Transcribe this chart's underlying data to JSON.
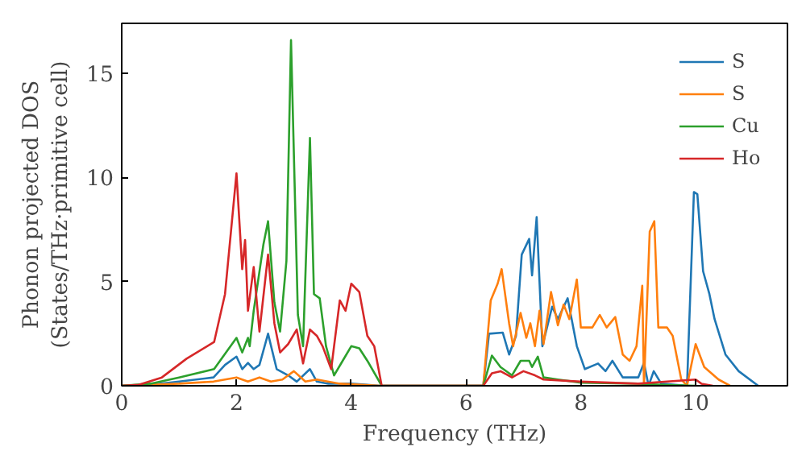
{
  "chart_data": {
    "type": "line",
    "xlabel": "Frequency (THz)",
    "ylabel": "Phonon projected DOS\n(States/THz·primitive cell)",
    "xlim": [
      0,
      11.6
    ],
    "ylim": [
      0,
      17.4
    ],
    "xticks": [
      0,
      2,
      4,
      6,
      8,
      10
    ],
    "yticks": [
      0,
      5,
      10,
      15
    ],
    "grid": false,
    "legend": "top right",
    "line_style": "solid",
    "marker": "none",
    "series": [
      {
        "name": "S",
        "color": "#1f77b4",
        "x": [
          0,
          0.5,
          1.0,
          1.6,
          1.8,
          2.0,
          2.1,
          2.2,
          2.3,
          2.4,
          2.55,
          2.7,
          2.9,
          3.05,
          3.28,
          3.4,
          3.6,
          4.0,
          4.5,
          6.3,
          6.4,
          6.64,
          6.75,
          6.87,
          6.97,
          7.1,
          7.15,
          7.23,
          7.33,
          7.5,
          7.6,
          7.77,
          7.93,
          8.07,
          8.3,
          8.43,
          8.55,
          8.73,
          9.0,
          9.1,
          9.18,
          9.27,
          9.4,
          9.85,
          9.97,
          10.03,
          10.13,
          10.24,
          10.33,
          10.52,
          10.75,
          11.09
        ],
        "values": [
          0,
          0.05,
          0.2,
          0.4,
          1.0,
          1.4,
          0.8,
          1.1,
          0.8,
          1.0,
          2.5,
          0.8,
          0.5,
          0.2,
          0.8,
          0.2,
          0.1,
          0.1,
          0,
          0,
          2.5,
          2.55,
          1.5,
          2.4,
          6.3,
          7.05,
          5.3,
          8.1,
          1.9,
          3.8,
          3.2,
          4.2,
          1.9,
          0.8,
          1.07,
          0.7,
          1.2,
          0.4,
          0.4,
          1.1,
          0,
          0.7,
          0.1,
          0,
          9.3,
          9.2,
          5.5,
          4.4,
          3.2,
          1.5,
          0.7,
          0
        ]
      },
      {
        "name": "S",
        "color": "#ff7f0e",
        "x": [
          0,
          0.5,
          1.0,
          1.6,
          2.0,
          2.2,
          2.4,
          2.6,
          2.8,
          3.0,
          3.2,
          3.4,
          3.8,
          4.5,
          6.3,
          6.43,
          6.55,
          6.62,
          6.75,
          6.82,
          6.95,
          7.05,
          7.12,
          7.2,
          7.28,
          7.35,
          7.48,
          7.6,
          7.7,
          7.8,
          7.93,
          8.0,
          8.2,
          8.33,
          8.45,
          8.6,
          8.73,
          8.85,
          8.97,
          9.07,
          9.1,
          9.2,
          9.28,
          9.35,
          9.5,
          9.6,
          9.75,
          9.85,
          10.0,
          10.15,
          10.4,
          10.6
        ],
        "values": [
          0,
          0.05,
          0.1,
          0.2,
          0.4,
          0.2,
          0.4,
          0.2,
          0.3,
          0.7,
          0.2,
          0.3,
          0.1,
          0,
          0,
          4.1,
          4.9,
          5.6,
          3.0,
          1.9,
          3.5,
          2.3,
          3.0,
          1.9,
          3.6,
          2.0,
          4.5,
          2.9,
          3.9,
          3.2,
          5.1,
          2.8,
          2.8,
          3.4,
          2.8,
          3.3,
          1.5,
          1.2,
          1.9,
          4.8,
          0,
          7.4,
          7.9,
          2.8,
          2.8,
          2.4,
          0.3,
          0,
          2.0,
          0.9,
          0.3,
          0
        ]
      },
      {
        "name": "Cu",
        "color": "#2ca02c",
        "x": [
          0,
          0.5,
          1.0,
          1.61,
          2.0,
          2.1,
          2.2,
          2.23,
          2.3,
          2.47,
          2.55,
          2.66,
          2.76,
          2.87,
          2.95,
          3.07,
          3.16,
          3.28,
          3.35,
          3.45,
          3.56,
          3.7,
          3.85,
          4.0,
          4.14,
          4.28,
          4.53,
          6.3,
          6.45,
          6.6,
          6.8,
          6.95,
          7.1,
          7.15,
          7.25,
          7.35,
          7.6,
          8.0,
          9.0,
          9.4,
          10.0
        ],
        "values": [
          0,
          0.1,
          0.4,
          0.8,
          2.3,
          1.6,
          2.3,
          1.9,
          3.6,
          6.8,
          7.9,
          4.0,
          2.6,
          6.0,
          16.6,
          3.4,
          1.9,
          11.9,
          4.4,
          4.2,
          1.9,
          0.5,
          1.2,
          1.9,
          1.8,
          1.2,
          0,
          0,
          1.45,
          0.9,
          0.5,
          1.2,
          1.2,
          0.9,
          1.4,
          0.4,
          0.3,
          0.15,
          0.1,
          0.05,
          0
        ]
      },
      {
        "name": "Ho",
        "color": "#d62728",
        "x": [
          0,
          0.3,
          0.7,
          1.13,
          1.61,
          1.8,
          2.0,
          2.1,
          2.15,
          2.2,
          2.3,
          2.4,
          2.55,
          2.66,
          2.76,
          2.9,
          3.05,
          3.16,
          3.28,
          3.4,
          3.5,
          3.65,
          3.8,
          3.9,
          4.0,
          4.14,
          4.28,
          4.4,
          4.53,
          6.3,
          6.45,
          6.6,
          6.8,
          7.0,
          7.2,
          7.35,
          8.0,
          9.0,
          10.0,
          10.1,
          10.3
        ],
        "values": [
          0,
          0.05,
          0.4,
          1.3,
          2.1,
          4.4,
          10.2,
          5.6,
          7.0,
          3.6,
          5.7,
          2.6,
          6.3,
          3.0,
          1.6,
          2.0,
          2.7,
          1.07,
          2.7,
          2.4,
          1.9,
          0.8,
          4.1,
          3.6,
          4.9,
          4.5,
          2.4,
          1.9,
          0,
          0,
          0.6,
          0.7,
          0.4,
          0.7,
          0.5,
          0.3,
          0.2,
          0.1,
          0.3,
          0.1,
          0
        ]
      }
    ]
  }
}
